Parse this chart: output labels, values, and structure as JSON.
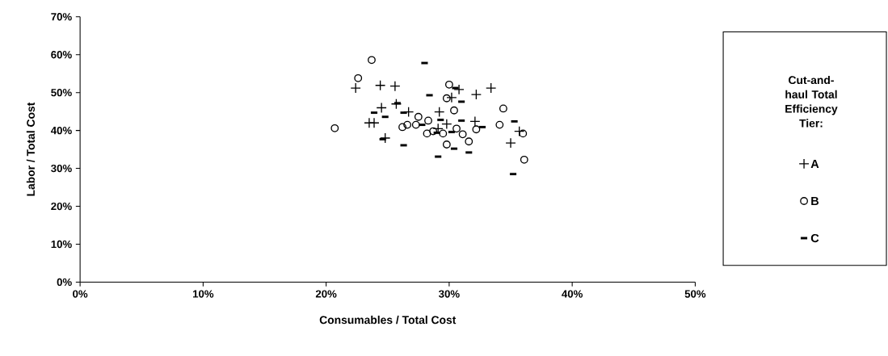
{
  "chart_data": {
    "type": "scatter",
    "xlabel": "Consumables / Total Cost",
    "ylabel": "Labor / Total Cost",
    "legend_title": "Cut-and-haul Total Efficiency Tier:",
    "legend": "right",
    "grid": false,
    "xlim": [
      0,
      50
    ],
    "ylim": [
      0,
      70
    ],
    "xticks": [
      {
        "value": 0,
        "label": "0%"
      },
      {
        "value": 10,
        "label": "10%"
      },
      {
        "value": 20,
        "label": "20%"
      },
      {
        "value": 30,
        "label": "30%"
      },
      {
        "value": 40,
        "label": "40%"
      },
      {
        "value": 50,
        "label": "50%"
      }
    ],
    "yticks": [
      {
        "value": 0,
        "label": "0%"
      },
      {
        "value": 10,
        "label": "10%"
      },
      {
        "value": 20,
        "label": "20%"
      },
      {
        "value": 30,
        "label": "30%"
      },
      {
        "value": 40,
        "label": "40%"
      },
      {
        "value": 50,
        "label": "50%"
      },
      {
        "value": 60,
        "label": "60%"
      },
      {
        "value": 70,
        "label": "70%"
      }
    ],
    "series": [
      {
        "name": "A",
        "color": "#000000",
        "marker": "cross",
        "x": [
          22.4,
          24.4,
          25.6,
          24.5,
          25.7,
          23.5,
          23.9,
          24.8,
          26.7,
          29.2,
          29.8,
          29.1,
          30.2,
          30.8,
          32.2,
          33.4,
          32.1,
          35.7,
          35.0
        ],
        "values": [
          51.2,
          51.9,
          51.7,
          46.0,
          47.0,
          42.0,
          42.0,
          38.0,
          44.9,
          44.9,
          41.7,
          40.5,
          48.7,
          50.8,
          49.5,
          51.2,
          42.4,
          39.8,
          36.7
        ]
      },
      {
        "name": "B",
        "color": "#000000",
        "marker": "circle",
        "x": [
          22.6,
          20.7,
          23.7,
          26.2,
          26.6,
          27.5,
          27.3,
          28.3,
          28.2,
          28.7,
          29.5,
          29.8,
          30.0,
          29.8,
          30.4,
          30.6,
          31.1,
          32.2,
          31.6,
          34.4,
          34.1,
          36.0,
          36.1
        ],
        "values": [
          53.8,
          40.6,
          58.6,
          40.9,
          41.5,
          43.6,
          41.5,
          42.6,
          39.2,
          39.8,
          39.2,
          36.3,
          52.1,
          48.5,
          45.3,
          40.5,
          39.0,
          40.3,
          37.1,
          45.8,
          41.5,
          39.2,
          32.3
        ]
      },
      {
        "name": "C",
        "color": "#000000",
        "marker": "square",
        "x": [
          28.4,
          25.8,
          23.9,
          24.8,
          26.3,
          29.3,
          27.8,
          24.6,
          26.3,
          29.1,
          30.2,
          30.4,
          29.0,
          31.0,
          31.0,
          31.6,
          32.7,
          35.3,
          35.2,
          30.5,
          28.0
        ],
        "values": [
          49.3,
          47.2,
          44.7,
          43.6,
          44.7,
          42.8,
          41.5,
          37.7,
          36.1,
          33.1,
          39.6,
          35.2,
          39.4,
          47.6,
          42.6,
          34.2,
          40.9,
          42.4,
          28.5,
          51.2,
          57.8
        ]
      }
    ]
  }
}
